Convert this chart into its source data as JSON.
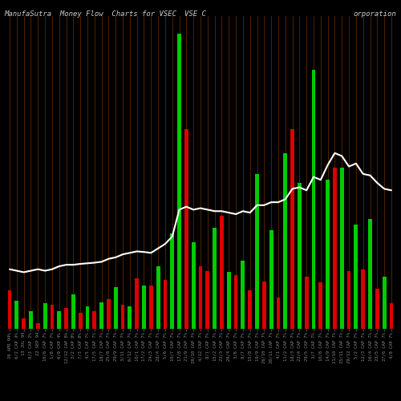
{
  "title_left": "ManufaSutra  Money Flow  Charts for VSEC",
  "title_mid": "VSE C",
  "title_right": "orporation",
  "background_color": "#000000",
  "line_color": "#ffffff",
  "grid_color": "#5a2800",
  "bar_colors": [
    "red",
    "green",
    "red",
    "green",
    "red",
    "green",
    "red",
    "green",
    "red",
    "green",
    "red",
    "green",
    "red",
    "green",
    "red",
    "green",
    "red",
    "green",
    "red",
    "green",
    "red",
    "green",
    "red",
    "green",
    "green",
    "red",
    "green",
    "red",
    "red",
    "green",
    "red",
    "green",
    "red",
    "green",
    "red",
    "green",
    "red",
    "green",
    "red",
    "green",
    "red",
    "green",
    "red",
    "green",
    "red",
    "green",
    "red",
    "green",
    "red",
    "green",
    "red",
    "green",
    "red",
    "green",
    "red"
  ],
  "bar_heights": [
    0.13,
    0.095,
    0.035,
    0.06,
    0.02,
    0.085,
    0.08,
    0.06,
    0.07,
    0.115,
    0.055,
    0.075,
    0.06,
    0.09,
    0.1,
    0.14,
    0.08,
    0.075,
    0.17,
    0.145,
    0.145,
    0.21,
    0.165,
    0.32,
    0.99,
    0.67,
    0.29,
    0.21,
    0.195,
    0.34,
    0.38,
    0.19,
    0.18,
    0.23,
    0.13,
    0.52,
    0.16,
    0.33,
    0.105,
    0.59,
    0.67,
    0.49,
    0.175,
    0.87,
    0.155,
    0.5,
    0.54,
    0.54,
    0.195,
    0.35,
    0.2,
    0.37,
    0.135,
    0.175,
    0.085
  ],
  "line_values": [
    0.2,
    0.195,
    0.19,
    0.195,
    0.2,
    0.195,
    0.2,
    0.21,
    0.215,
    0.215,
    0.218,
    0.22,
    0.222,
    0.225,
    0.235,
    0.24,
    0.25,
    0.255,
    0.26,
    0.258,
    0.255,
    0.27,
    0.285,
    0.31,
    0.4,
    0.41,
    0.4,
    0.405,
    0.4,
    0.395,
    0.395,
    0.39,
    0.385,
    0.395,
    0.39,
    0.415,
    0.415,
    0.425,
    0.425,
    0.435,
    0.47,
    0.475,
    0.465,
    0.51,
    0.5,
    0.55,
    0.59,
    0.58,
    0.545,
    0.555,
    0.52,
    0.515,
    0.49,
    0.47,
    0.465
  ],
  "n_bars": 55,
  "title_color": "#cccccc",
  "tick_color": "#888888",
  "title_fontsize": 6.5,
  "tick_fontsize": 4.0,
  "ylim": [
    0,
    1.05
  ],
  "labels": [
    "26 APR 94%",
    "6/2 CAP 4%",
    "13 JUL 94",
    "8/3 CAP 2%",
    "22 SEP 94",
    "10/6 CAP 7%",
    "1/8 CAP 7%",
    "6/9 CAP 4%",
    "12/12 CAP 8%",
    "3/2 CAP 8%",
    "7/3 CAP 8%",
    "4/5 CAP 7%",
    "17/5 CAP 7%",
    "18/7 CAP 7%",
    "25/8 CAP 7%",
    "29/9 CAP 7%",
    "3/11 CAP 7%",
    "6/12 CAP 7%",
    "10/1 CAP 7%",
    "17/2 CAP 7%",
    "24/3 CAP 7%",
    "28/4 CAP 7%",
    "5/6 CAP 7%",
    "10/7 CAP 7%",
    "17/8 CAP 7%",
    "21/9 CAP 7%",
    "28/10 CAP 7%",
    "4/12 CAP 7%",
    "8/1 CAP 7%",
    "15/2 CAP 7%",
    "22/3 CAP 7%",
    "26/4 CAP 7%",
    "3/6 CAP 7%",
    "8/7 CAP 7%",
    "15/8 CAP 7%",
    "19/9 CAP 7%",
    "26/10 CAP 7%",
    "30/11 CAP 7%",
    "4/1 CAP 7%",
    "11/2 CAP 7%",
    "18/3 CAP 7%",
    "22/4 CAP 7%",
    "29/5 CAP 7%",
    "3/7 CAP 7%",
    "10/8 CAP 7%",
    "14/9 CAP 7%",
    "21/10 CAP 7%",
    "25/11 CAP 7%",
    "29/12 CAP 7%",
    "5/2 CAP 7%",
    "12/3 CAP 7%",
    "16/4 CAP 7%",
    "23/5 CAP 7%",
    "27/6 CAP 7%",
    "4/8 CAP 7%"
  ]
}
